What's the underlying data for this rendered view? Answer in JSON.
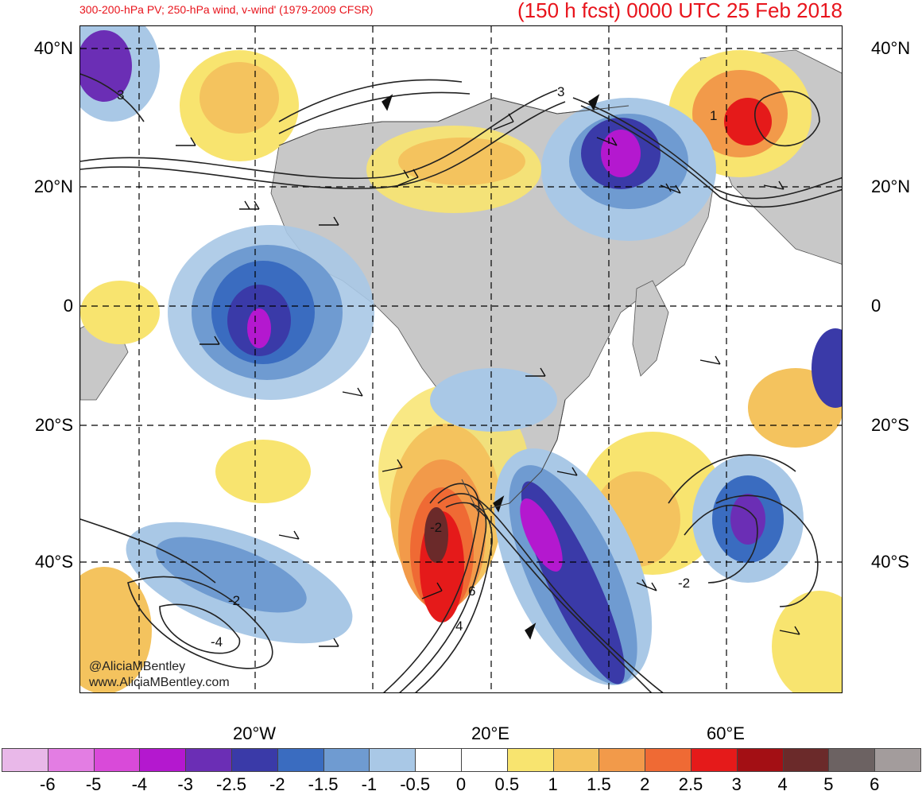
{
  "header": {
    "left_title": "300-200-hPa PV; 250-hPa wind, v-wind' (1979-2009 CFSR)",
    "right_title": "(150 h fcst) 0000 UTC 25 Feb 2018"
  },
  "map": {
    "lat_labels": [
      "40°N",
      "20°N",
      "0",
      "20°S",
      "40°S"
    ],
    "lon_labels": [
      "20°W",
      "20°E",
      "60°E"
    ],
    "contour_labels": [
      "3",
      "3",
      "1",
      "-2",
      "6",
      "4",
      "-2",
      "-4",
      "-2"
    ],
    "watermark": [
      "@AliciaMBentley",
      "www.AliciaMBentley.com"
    ]
  },
  "colorbar": {
    "labels": [
      "-6",
      "-5",
      "-4",
      "-3",
      "-2.5",
      "-2",
      "-1.5",
      "-1",
      "-0.5",
      "0",
      "0.5",
      "1",
      "1.5",
      "2",
      "2.5",
      "3",
      "4",
      "5",
      "6"
    ],
    "colors": [
      "#e9b8e9",
      "#e37de3",
      "#d94ad9",
      "#b418cf",
      "#6b2eb5",
      "#3a3aa8",
      "#3a6cc0",
      "#6f9bd1",
      "#a9c8e6",
      "#ffffff",
      "#ffffff",
      "#f8e46f",
      "#f4c35e",
      "#f29a4a",
      "#ef6a34",
      "#e51a1a",
      "#a30f14",
      "#6b2a2a",
      "#6c6262",
      "#a39c9c"
    ]
  }
}
